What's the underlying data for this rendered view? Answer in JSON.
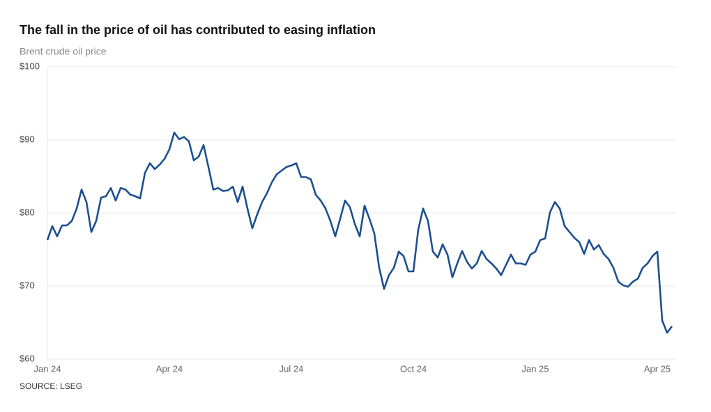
{
  "chart_data": {
    "type": "line",
    "title": "The fall in the price of oil has contributed to easing inflation",
    "subtitle": "Brent crude oil price",
    "source": "SOURCE: LSEG",
    "categories": [
      "Jan 24",
      null,
      null,
      null,
      null,
      null,
      null,
      null,
      null,
      null,
      null,
      null,
      null,
      null,
      null,
      null,
      null,
      null,
      null,
      null,
      null,
      null,
      null,
      null,
      null,
      "Apr 24",
      null,
      null,
      null,
      null,
      null,
      null,
      null,
      null,
      null,
      null,
      null,
      null,
      null,
      null,
      null,
      null,
      null,
      null,
      null,
      null,
      null,
      null,
      null,
      null,
      "Jul 24",
      null,
      null,
      null,
      null,
      null,
      null,
      null,
      null,
      null,
      null,
      null,
      null,
      null,
      null,
      null,
      null,
      null,
      null,
      null,
      null,
      null,
      null,
      null,
      null,
      "Oct 24",
      null,
      null,
      null,
      null,
      null,
      null,
      null,
      null,
      null,
      null,
      null,
      null,
      null,
      null,
      null,
      null,
      null,
      null,
      null,
      null,
      null,
      null,
      null,
      null,
      "Jan 25",
      null,
      null,
      null,
      null,
      null,
      null,
      null,
      null,
      null,
      null,
      null,
      null,
      null,
      null,
      null,
      null,
      null,
      null,
      null,
      null,
      null,
      null,
      null,
      null,
      "Apr 25",
      null,
      null,
      null
    ],
    "values": [
      76.3,
      78.2,
      76.8,
      78.3,
      78.3,
      78.9,
      80.6,
      83.2,
      81.5,
      77.4,
      78.9,
      82.1,
      82.3,
      83.4,
      81.7,
      83.4,
      83.2,
      82.5,
      82.3,
      82.0,
      85.5,
      86.8,
      86.0,
      86.6,
      87.4,
      88.7,
      91.0,
      90.1,
      90.4,
      89.8,
      87.2,
      87.7,
      89.3,
      86.3,
      83.2,
      83.4,
      83.0,
      83.1,
      83.6,
      81.5,
      83.6,
      80.6,
      77.9,
      79.8,
      81.5,
      82.7,
      84.2,
      85.3,
      85.8,
      86.3,
      86.5,
      86.8,
      84.9,
      84.9,
      84.6,
      82.5,
      81.7,
      80.6,
      78.9,
      76.8,
      79.2,
      81.7,
      80.8,
      78.5,
      76.8,
      81.0,
      79.2,
      77.2,
      72.5,
      69.6,
      71.5,
      72.5,
      74.7,
      74.1,
      72.0,
      72.0,
      77.7,
      80.6,
      78.9,
      74.7,
      73.9,
      75.7,
      74.3,
      71.2,
      73.1,
      74.8,
      73.3,
      72.4,
      73.1,
      74.8,
      73.7,
      73.1,
      72.4,
      71.5,
      72.9,
      74.3,
      73.1,
      73.1,
      72.9,
      74.3,
      74.7,
      76.3,
      76.5,
      80.1,
      81.5,
      80.6,
      78.2,
      77.4,
      76.6,
      76.0,
      74.4,
      76.3,
      75.0,
      75.6,
      74.4,
      73.7,
      72.5,
      70.6,
      70.1,
      69.9,
      70.6,
      71.0,
      72.5,
      73.1,
      74.1,
      74.7,
      65.3,
      63.6,
      64.5
    ],
    "color": "#1c4f8f",
    "ylim": [
      60,
      100
    ],
    "yticks": [
      {
        "value": 60,
        "label": "$60"
      },
      {
        "value": 70,
        "label": "$70"
      },
      {
        "value": 80,
        "label": "$80"
      },
      {
        "value": 90,
        "label": "$90"
      },
      {
        "value": 100,
        "label": "$100"
      }
    ],
    "grid": true
  }
}
